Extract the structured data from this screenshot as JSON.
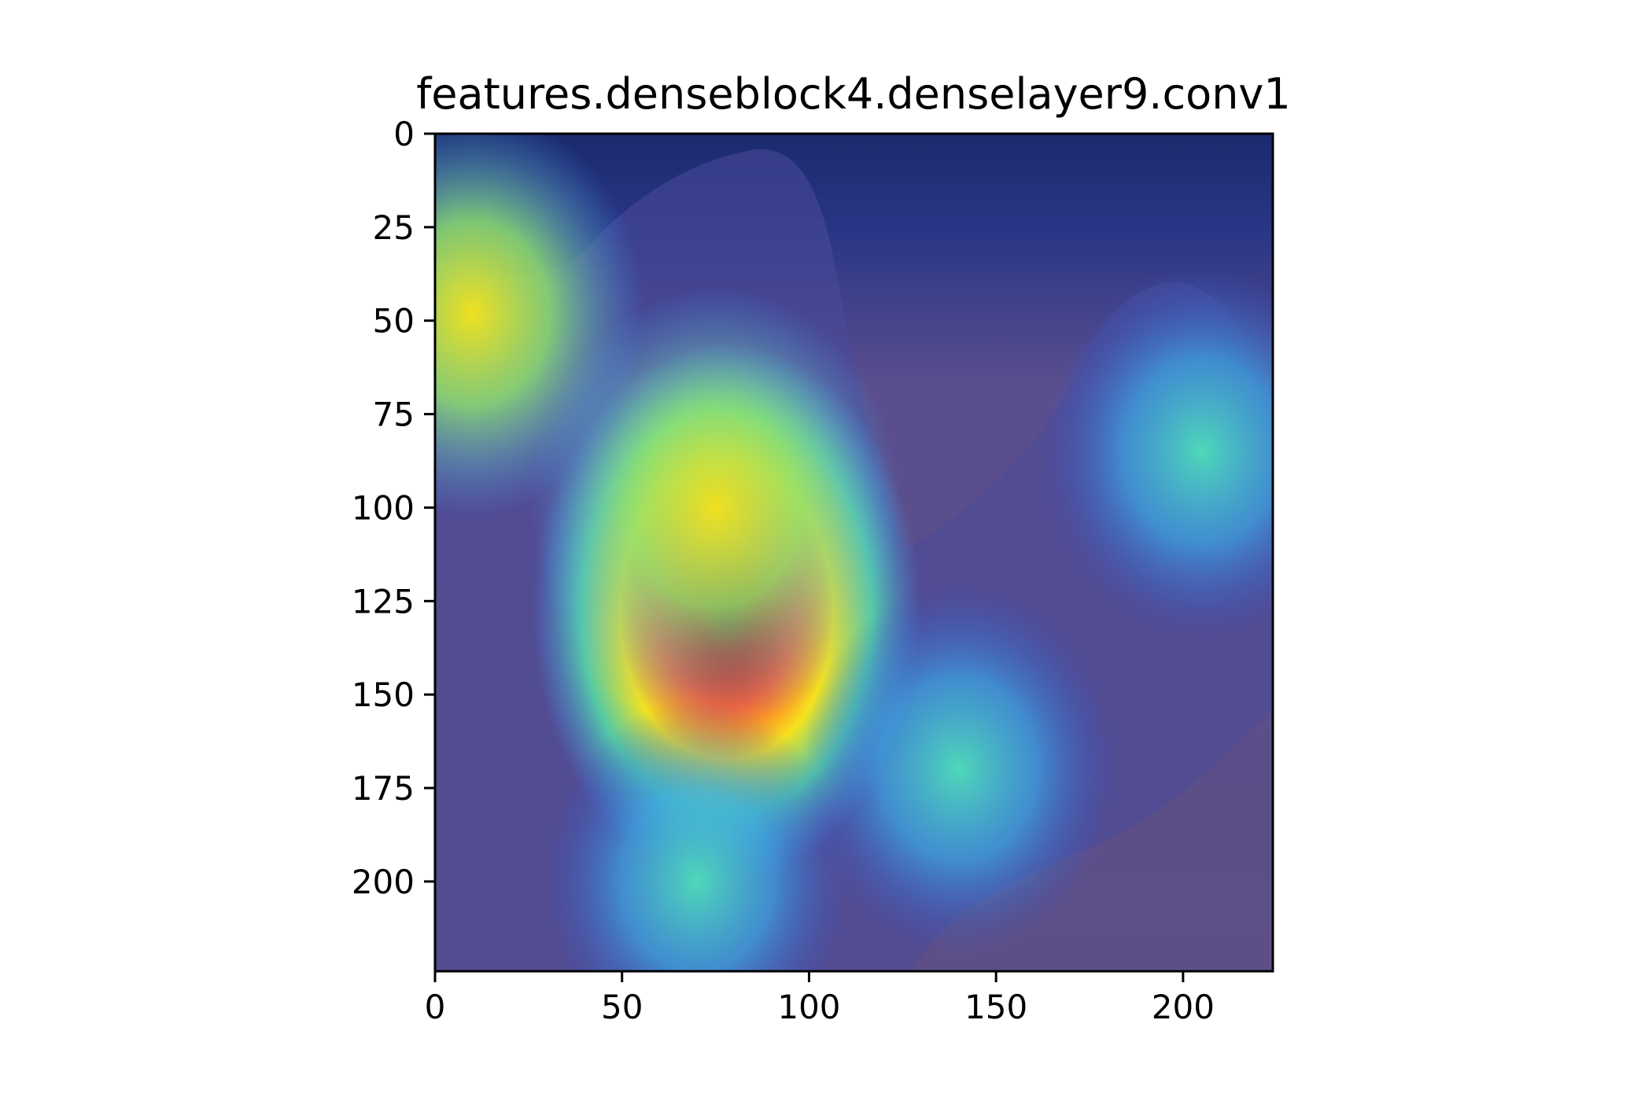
{
  "chart_data": {
    "type": "heatmap",
    "title": "features.denseblock4.denselayer9.conv1",
    "xlabel": "",
    "ylabel": "",
    "xlim": [
      0,
      224
    ],
    "ylim": [
      224,
      0
    ],
    "x_ticks": [
      0,
      50,
      100,
      150,
      200
    ],
    "y_ticks": [
      0,
      25,
      50,
      75,
      100,
      125,
      150,
      175,
      200
    ],
    "image_size": [
      224,
      224
    ],
    "colormap": "jet",
    "grid": false,
    "background_image": "bear-photo-with-activation-overlay",
    "activation_peaks": [
      {
        "x": 78,
        "y": 138,
        "strength": 1.0
      },
      {
        "x": 75,
        "y": 100,
        "strength": 0.78
      },
      {
        "x": 10,
        "y": 48,
        "strength": 0.6
      },
      {
        "x": 205,
        "y": 85,
        "strength": 0.42
      },
      {
        "x": 140,
        "y": 170,
        "strength": 0.4
      },
      {
        "x": 70,
        "y": 200,
        "strength": 0.35
      }
    ]
  },
  "colors": {
    "overlay_base": "#3a3f8c",
    "frame": "#000000"
  }
}
